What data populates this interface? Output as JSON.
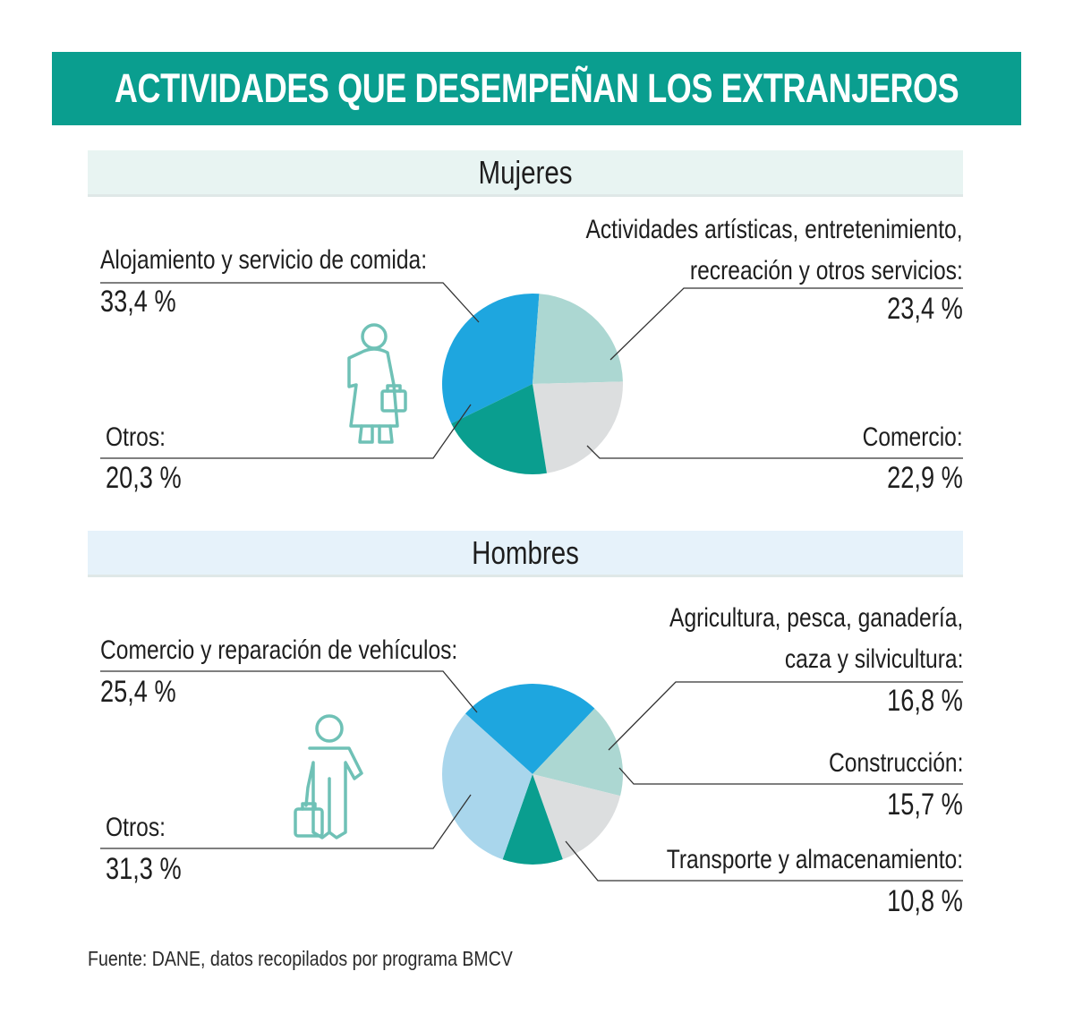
{
  "header": {
    "title": "ACTIVIDADES QUE DESEMPEÑAN LOS EXTRANJEROS"
  },
  "colors": {
    "banner": "#0a9e8f",
    "icon": "#6fc1b6",
    "leader": "#333333"
  },
  "icons": {
    "women": "woman-with-bag-icon",
    "men": "man-with-briefcase-icon"
  },
  "chart_data": [
    {
      "type": "pie",
      "title": "Mujeres",
      "slices": [
        {
          "label": "Alojamiento y servicio de comida:",
          "value": 33.4,
          "display": "33,4 %",
          "color": "#1ea6df"
        },
        {
          "label": "Actividades artísticas, entretenimiento,",
          "label2": "recreación y otros servicios:",
          "value": 23.4,
          "display": "23,4 %",
          "color": "#acd7d2"
        },
        {
          "label": "Comercio:",
          "value": 22.9,
          "display": "22,9 %",
          "color": "#dcdedf"
        },
        {
          "label": "Otros:",
          "value": 20.3,
          "display": "20,3 %",
          "color": "#0a9e8f"
        }
      ]
    },
    {
      "type": "pie",
      "title": "Hombres",
      "slices": [
        {
          "label": "Comercio y reparación de vehículos:",
          "value": 25.4,
          "display": "25,4 %",
          "color": "#1ea6df"
        },
        {
          "label": "Agricultura, pesca, ganadería,",
          "label2": "caza y silvicultura:",
          "value": 16.8,
          "display": "16,8 %",
          "color": "#acd7d2"
        },
        {
          "label": "Construcción:",
          "value": 15.7,
          "display": "15,7 %",
          "color": "#dcdedf"
        },
        {
          "label": "Transporte y almacenamiento:",
          "value": 10.8,
          "display": "10,8 %",
          "color": "#0a9e8f"
        },
        {
          "label": "Otros:",
          "value": 31.3,
          "display": "31,3 %",
          "color": "#a9d6ec"
        }
      ]
    }
  ],
  "source": "Fuente: DANE, datos recopilados por programa BMCV"
}
